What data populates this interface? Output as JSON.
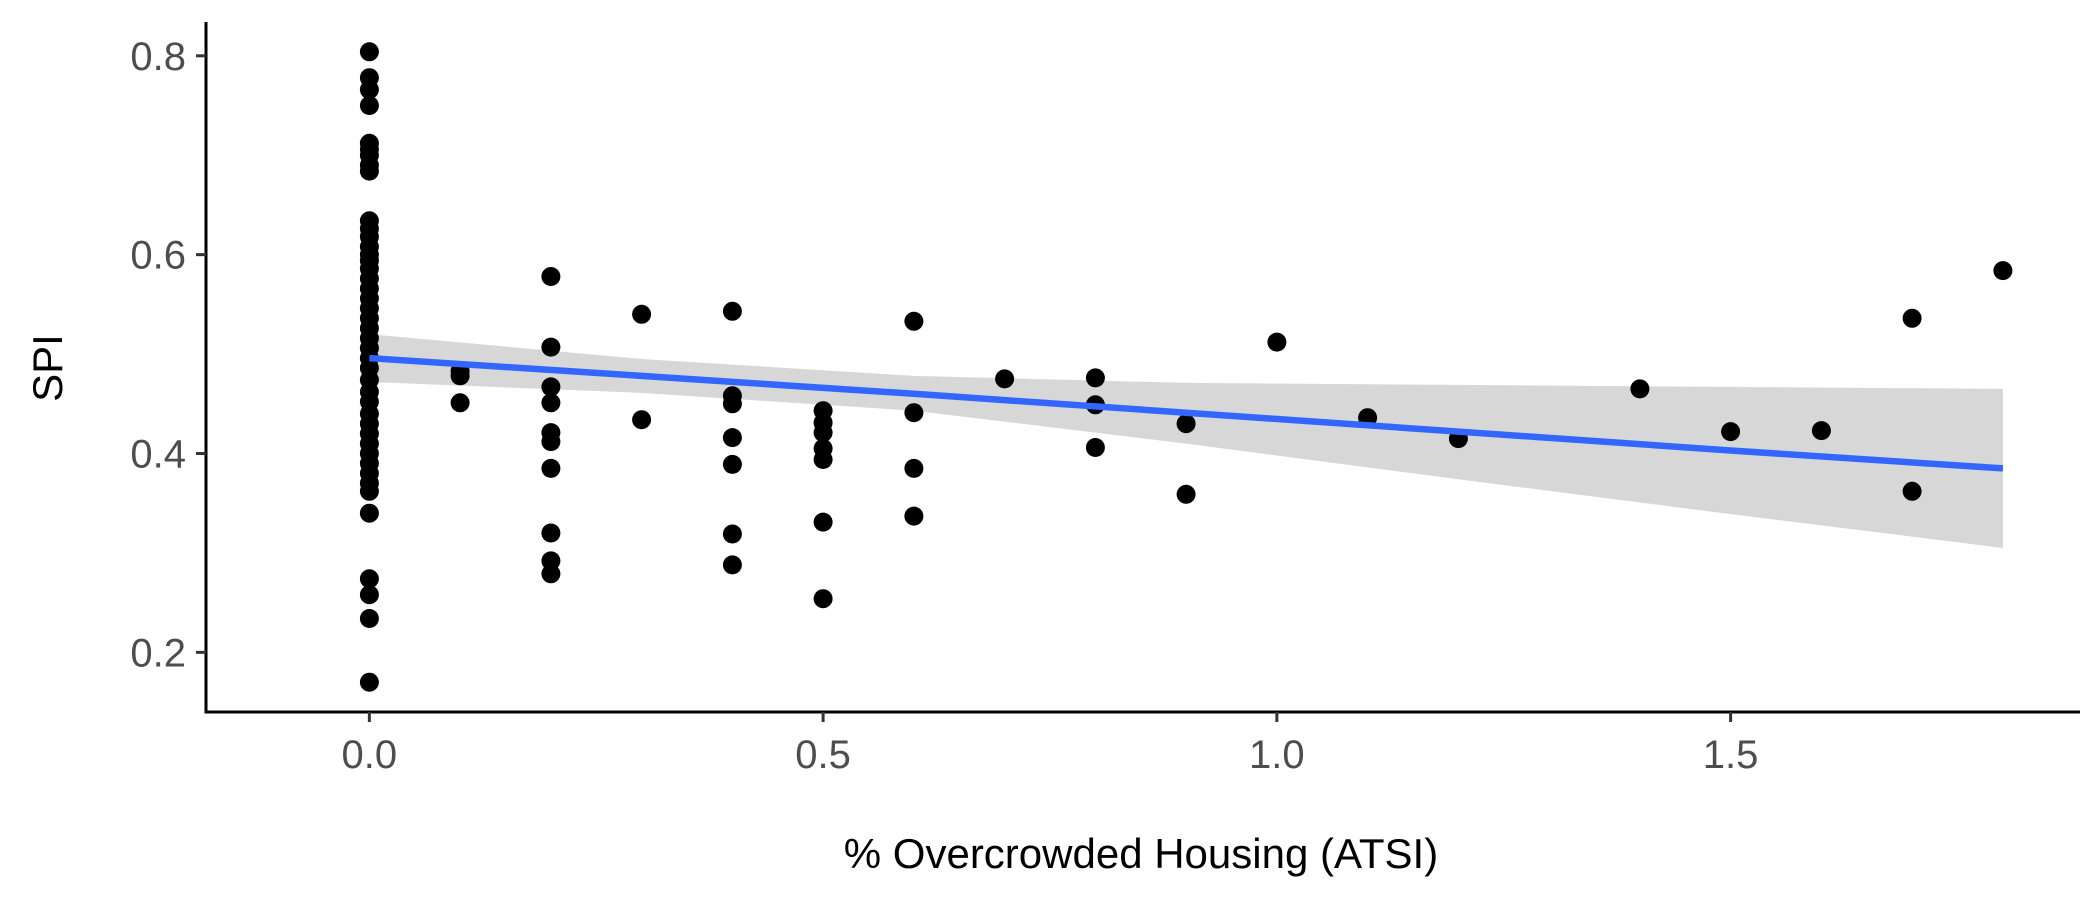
{
  "chart_data": {
    "type": "scatter",
    "title": "",
    "xlabel": "% Overcrowded Housing (ATSI)",
    "ylabel": "SPI",
    "xlim": [
      -0.18,
      1.885
    ],
    "ylim": [
      0.14,
      0.834
    ],
    "x_ticks": [
      0.0,
      0.5,
      1.0,
      1.5
    ],
    "x_tick_labels": [
      "0.0",
      "0.5",
      "1.0",
      "1.5"
    ],
    "y_ticks": [
      0.2,
      0.4,
      0.6,
      0.8
    ],
    "y_tick_labels": [
      "0.2",
      "0.4",
      "0.6",
      "0.8"
    ],
    "grid": false,
    "legend": "none",
    "point_color": "#000000",
    "trend_color": "#3366FF",
    "ribbon_color": "#d3d3d3",
    "trend_line": {
      "method": "linear",
      "x": [
        0.0,
        0.3,
        0.6,
        0.9,
        1.2,
        1.5,
        1.8
      ],
      "y": [
        0.496,
        0.478,
        0.46,
        0.441,
        0.422,
        0.403,
        0.385
      ],
      "ci_lower": [
        0.472,
        0.461,
        0.443,
        0.41,
        0.374,
        0.339,
        0.305
      ],
      "ci_upper": [
        0.52,
        0.495,
        0.478,
        0.471,
        0.469,
        0.467,
        0.465
      ]
    },
    "points": [
      {
        "x": 0.0,
        "y": 0.804
      },
      {
        "x": 0.0,
        "y": 0.778
      },
      {
        "x": 0.0,
        "y": 0.766
      },
      {
        "x": 0.0,
        "y": 0.75
      },
      {
        "x": 0.0,
        "y": 0.712
      },
      {
        "x": 0.0,
        "y": 0.706
      },
      {
        "x": 0.0,
        "y": 0.7
      },
      {
        "x": 0.0,
        "y": 0.69
      },
      {
        "x": 0.0,
        "y": 0.684
      },
      {
        "x": 0.0,
        "y": 0.634
      },
      {
        "x": 0.0,
        "y": 0.626
      },
      {
        "x": 0.0,
        "y": 0.618
      },
      {
        "x": 0.0,
        "y": 0.608
      },
      {
        "x": 0.0,
        "y": 0.6
      },
      {
        "x": 0.0,
        "y": 0.594
      },
      {
        "x": 0.0,
        "y": 0.586
      },
      {
        "x": 0.0,
        "y": 0.576
      },
      {
        "x": 0.0,
        "y": 0.566
      },
      {
        "x": 0.0,
        "y": 0.556
      },
      {
        "x": 0.0,
        "y": 0.546
      },
      {
        "x": 0.0,
        "y": 0.536
      },
      {
        "x": 0.0,
        "y": 0.526
      },
      {
        "x": 0.0,
        "y": 0.516
      },
      {
        "x": 0.0,
        "y": 0.506
      },
      {
        "x": 0.0,
        "y": 0.496
      },
      {
        "x": 0.0,
        "y": 0.486
      },
      {
        "x": 0.0,
        "y": 0.474
      },
      {
        "x": 0.0,
        "y": 0.462
      },
      {
        "x": 0.0,
        "y": 0.452
      },
      {
        "x": 0.0,
        "y": 0.44
      },
      {
        "x": 0.0,
        "y": 0.43
      },
      {
        "x": 0.0,
        "y": 0.42
      },
      {
        "x": 0.0,
        "y": 0.41
      },
      {
        "x": 0.0,
        "y": 0.4
      },
      {
        "x": 0.0,
        "y": 0.39
      },
      {
        "x": 0.0,
        "y": 0.38
      },
      {
        "x": 0.0,
        "y": 0.37
      },
      {
        "x": 0.0,
        "y": 0.362
      },
      {
        "x": 0.0,
        "y": 0.34
      },
      {
        "x": 0.0,
        "y": 0.274
      },
      {
        "x": 0.0,
        "y": 0.258
      },
      {
        "x": 0.0,
        "y": 0.234
      },
      {
        "x": 0.0,
        "y": 0.17
      },
      {
        "x": 0.1,
        "y": 0.483
      },
      {
        "x": 0.1,
        "y": 0.478
      },
      {
        "x": 0.1,
        "y": 0.451
      },
      {
        "x": 0.2,
        "y": 0.578
      },
      {
        "x": 0.2,
        "y": 0.507
      },
      {
        "x": 0.2,
        "y": 0.467
      },
      {
        "x": 0.2,
        "y": 0.451
      },
      {
        "x": 0.2,
        "y": 0.421
      },
      {
        "x": 0.2,
        "y": 0.412
      },
      {
        "x": 0.2,
        "y": 0.385
      },
      {
        "x": 0.2,
        "y": 0.32
      },
      {
        "x": 0.2,
        "y": 0.292
      },
      {
        "x": 0.2,
        "y": 0.279
      },
      {
        "x": 0.3,
        "y": 0.54
      },
      {
        "x": 0.3,
        "y": 0.434
      },
      {
        "x": 0.4,
        "y": 0.543
      },
      {
        "x": 0.4,
        "y": 0.458
      },
      {
        "x": 0.4,
        "y": 0.45
      },
      {
        "x": 0.4,
        "y": 0.416
      },
      {
        "x": 0.4,
        "y": 0.389
      },
      {
        "x": 0.4,
        "y": 0.319
      },
      {
        "x": 0.4,
        "y": 0.288
      },
      {
        "x": 0.5,
        "y": 0.443
      },
      {
        "x": 0.5,
        "y": 0.431
      },
      {
        "x": 0.5,
        "y": 0.421
      },
      {
        "x": 0.5,
        "y": 0.405
      },
      {
        "x": 0.5,
        "y": 0.394
      },
      {
        "x": 0.5,
        "y": 0.331
      },
      {
        "x": 0.5,
        "y": 0.254
      },
      {
        "x": 0.6,
        "y": 0.533
      },
      {
        "x": 0.6,
        "y": 0.441
      },
      {
        "x": 0.6,
        "y": 0.385
      },
      {
        "x": 0.6,
        "y": 0.337
      },
      {
        "x": 0.7,
        "y": 0.475
      },
      {
        "x": 0.8,
        "y": 0.476
      },
      {
        "x": 0.8,
        "y": 0.449
      },
      {
        "x": 0.8,
        "y": 0.406
      },
      {
        "x": 0.9,
        "y": 0.43
      },
      {
        "x": 0.9,
        "y": 0.359
      },
      {
        "x": 1.0,
        "y": 0.512
      },
      {
        "x": 1.1,
        "y": 0.436
      },
      {
        "x": 1.2,
        "y": 0.415
      },
      {
        "x": 1.4,
        "y": 0.465
      },
      {
        "x": 1.5,
        "y": 0.422
      },
      {
        "x": 1.6,
        "y": 0.423
      },
      {
        "x": 1.7,
        "y": 0.536
      },
      {
        "x": 1.7,
        "y": 0.362
      },
      {
        "x": 1.8,
        "y": 0.584
      }
    ]
  }
}
